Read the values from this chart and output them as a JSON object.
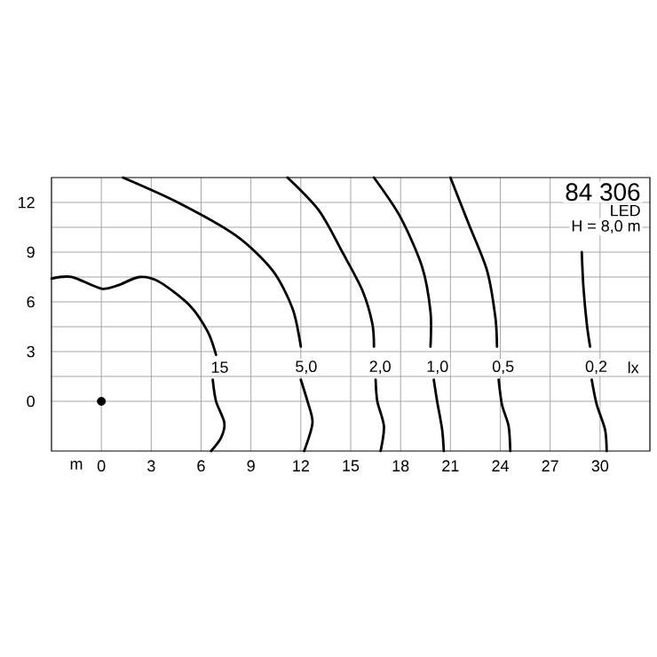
{
  "chart_data": {
    "type": "line",
    "xlabel": "m",
    "xlim": [
      -3,
      33
    ],
    "ylim": [
      -3,
      13.5
    ],
    "xticks": [
      0,
      3,
      6,
      9,
      12,
      15,
      18,
      21,
      24,
      27,
      30
    ],
    "yticks": [
      0,
      3,
      6,
      9,
      12
    ],
    "grid": true,
    "annotations": [
      "84 306",
      "LED",
      "H = 8,0 m",
      "lx"
    ],
    "series": [
      {
        "name": "15",
        "color": "#000000",
        "x": [
          -3,
          -1.8,
          0,
          1,
          2.3,
          3.5,
          5.3,
          6.4,
          6.9,
          null,
          6.7,
          6.9,
          7.4,
          7.2,
          6.6
        ],
        "values": [
          7.4,
          7.5,
          6.8,
          7.0,
          7.5,
          7.2,
          5.8,
          4.2,
          2.8,
          null,
          1.3,
          0,
          -1.3,
          -2.2,
          -3
        ]
      },
      {
        "name": "5,0",
        "color": "#000000",
        "x": [
          1.3,
          4.6,
          8.1,
          10.3,
          11.5,
          12,
          null,
          12,
          12.4,
          12.7,
          12.2
        ],
        "values": [
          13.5,
          12.0,
          10.0,
          7.9,
          5.6,
          3.3,
          null,
          1.3,
          0,
          -1.3,
          -3
        ]
      },
      {
        "name": "2,0",
        "color": "#000000",
        "x": [
          11.2,
          13.1,
          14.5,
          15.7,
          16.3,
          16.4,
          null,
          16.5,
          16.6,
          17,
          16.8
        ],
        "values": [
          13.5,
          11.5,
          9.0,
          6.7,
          4.7,
          3.3,
          null,
          1.3,
          0,
          -1.5,
          -3
        ]
      },
      {
        "name": "1,0",
        "color": "#000000",
        "x": [
          16.4,
          18,
          19.3,
          19.8,
          19.8,
          null,
          20,
          20.2,
          20.5,
          20.6
        ],
        "values": [
          13.5,
          11.1,
          8.1,
          5.4,
          3.3,
          null,
          1.3,
          0,
          -1.7,
          -3
        ]
      },
      {
        "name": "0,5",
        "color": "#000000",
        "x": [
          21,
          22.1,
          23.2,
          23.7,
          23.8,
          null,
          23.9,
          24.1,
          24.5,
          24.6
        ],
        "values": [
          13.5,
          10.7,
          7.9,
          5.1,
          3.3,
          null,
          1.3,
          -0.2,
          -1.5,
          -3
        ]
      },
      {
        "name": "0,2",
        "color": "#000000",
        "x": [
          28.9,
          29,
          29.2,
          29.4,
          null,
          29.5,
          29.8,
          30.3,
          30.4
        ],
        "values": [
          9.0,
          6.9,
          4.7,
          3.3,
          null,
          1.3,
          -0.2,
          -1.7,
          -3
        ]
      },
      {
        "type": "scatter",
        "color": "#000000",
        "x": [
          0
        ],
        "values": [
          0
        ]
      }
    ]
  }
}
